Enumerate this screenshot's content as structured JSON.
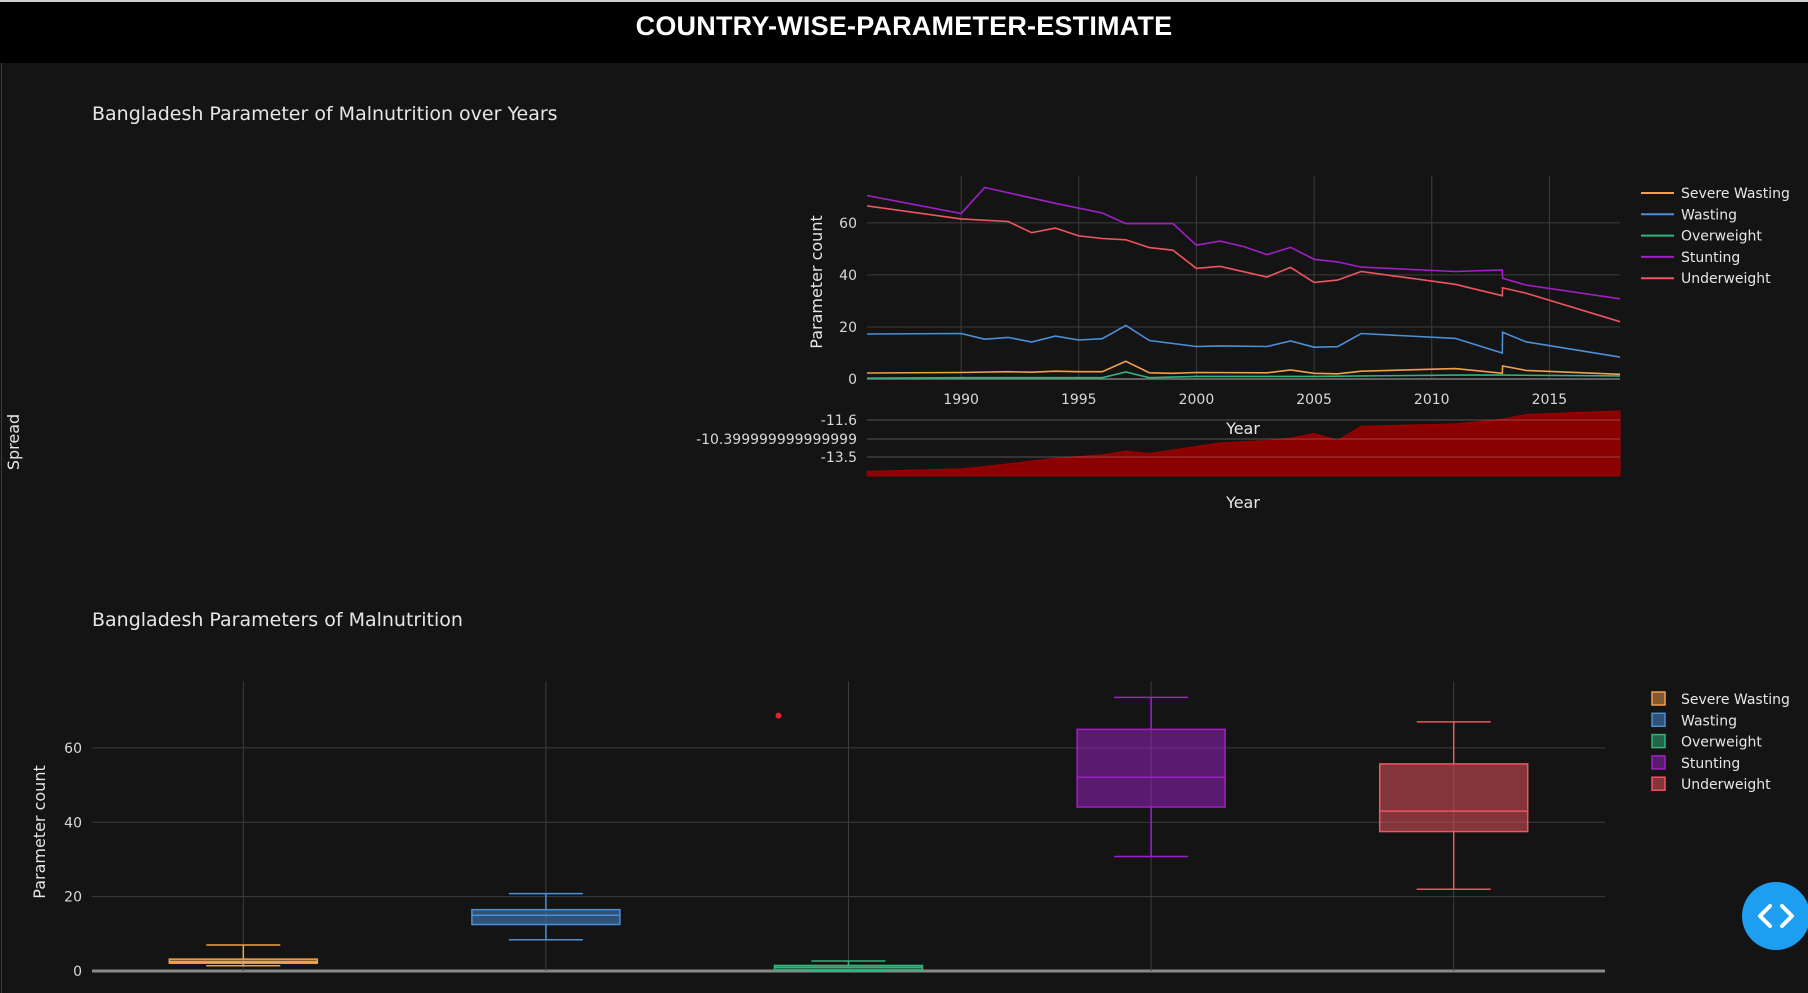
{
  "header": {
    "title": "COUNTRY-WISE-PARAMETER-ESTIMATE"
  },
  "left_axis_label": "Spread",
  "chart_data": [
    {
      "type": "line",
      "title": "Bangladesh Parameter of Malnutrition over Years",
      "xlabel": "Year",
      "ylabel": "Parameter count",
      "xlim": [
        1986,
        2018
      ],
      "ylim": [
        0,
        78
      ],
      "xticks": [
        "1990",
        "1995",
        "2000",
        "2005",
        "2010",
        "2015"
      ],
      "yticks": [
        "0",
        "20",
        "40",
        "60"
      ],
      "legend_position": "top-right",
      "series": [
        {
          "name": "Severe Wasting",
          "color": "#f2a04a",
          "x": [
            1986,
            1990,
            1992,
            1993,
            1994,
            1995,
            1996,
            1997,
            1998,
            1999,
            2000,
            2003,
            2004,
            2005,
            2006,
            2007,
            2011,
            2013,
            2013.01,
            2014,
            2018
          ],
          "y": [
            2.3,
            2.5,
            2.8,
            2.6,
            3.0,
            2.8,
            2.8,
            6.8,
            2.4,
            2.2,
            2.5,
            2.4,
            3.5,
            2.2,
            2.0,
            3.0,
            4.0,
            2.2,
            5.0,
            3.3,
            1.8
          ]
        },
        {
          "name": "Wasting",
          "color": "#4a90d9",
          "x": [
            1986,
            1990,
            1991,
            1992,
            1993,
            1994,
            1995,
            1996,
            1997,
            1998,
            2000,
            2001,
            2003,
            2004,
            2005,
            2006,
            2007,
            2011,
            2013,
            2013.01,
            2014,
            2018
          ],
          "y": [
            17.3,
            17.5,
            15.3,
            16.0,
            14.2,
            16.5,
            15.0,
            15.5,
            20.6,
            14.8,
            12.5,
            12.7,
            12.5,
            14.6,
            12.2,
            12.4,
            17.5,
            15.6,
            10.0,
            18.0,
            14.3,
            8.4
          ]
        },
        {
          "name": "Overweight",
          "color": "#2fb47c",
          "x": [
            1986,
            1990,
            1996,
            1997,
            1998,
            2000,
            2005,
            2011,
            2013,
            2018
          ],
          "y": [
            0.3,
            0.5,
            0.5,
            2.7,
            0.5,
            1.0,
            1.0,
            1.5,
            1.5,
            1.2
          ]
        },
        {
          "name": "Stunting",
          "color": "#a020c8",
          "x": [
            1986,
            1990,
            1991,
            1994,
            1996,
            1997,
            1999,
            2000,
            2001,
            2002,
            2003,
            2004,
            2005,
            2006,
            2007,
            2011,
            2013,
            2013.01,
            2014,
            2018
          ],
          "y": [
            70.5,
            63.6,
            73.6,
            67.5,
            63.8,
            59.7,
            59.7,
            51.4,
            53.0,
            50.9,
            47.8,
            50.6,
            46.0,
            45.0,
            43.0,
            41.3,
            41.9,
            38.7,
            36.1,
            30.8
          ]
        },
        {
          "name": "Underweight",
          "color": "#ef5560",
          "x": [
            1986,
            1990,
            1992,
            1993,
            1994,
            1995,
            1996,
            1997,
            1998,
            1999,
            2000,
            2001,
            2003,
            2004,
            2005,
            2006,
            2007,
            2011,
            2013,
            2013.01,
            2014,
            2018
          ],
          "y": [
            66.5,
            61.5,
            60.5,
            56.2,
            58.0,
            55.0,
            54.0,
            53.5,
            50.5,
            49.5,
            42.5,
            43.3,
            39.2,
            42.9,
            37.1,
            38.0,
            41.3,
            36.4,
            32.0,
            35.0,
            33.0,
            22.0
          ]
        }
      ]
    },
    {
      "type": "area",
      "xlabel": "Year",
      "ylabel": "",
      "yticks": [
        "-11.6",
        "-10.399999999999999",
        "-13.5"
      ],
      "color": "#8b0000",
      "x": [
        1986,
        1990,
        1991,
        1994,
        1996,
        1997,
        1998,
        1999,
        2001,
        2003,
        2004,
        2005,
        2006,
        2007,
        2011,
        2013,
        2014,
        2018
      ],
      "y": [
        -14.6,
        -14.4,
        -14.2,
        -13.5,
        -13.2,
        -12.9,
        -13.1,
        -12.8,
        -12.2,
        -12.0,
        -11.8,
        -11.4,
        -12.0,
        -10.8,
        -10.6,
        -10.2,
        -9.8,
        -9.5
      ]
    },
    {
      "type": "box",
      "title": "Bangladesh Parameters of Malnutrition",
      "ylabel": "Parameter count",
      "ylim": [
        0,
        78
      ],
      "yticks": [
        "0",
        "20",
        "40",
        "60"
      ],
      "legend_position": "right",
      "series": [
        {
          "name": "Severe Wasting",
          "color": "#f2a04a",
          "min": 1.4,
          "q1": 2.1,
          "median": 2.5,
          "q3": 3.2,
          "max": 7.0
        },
        {
          "name": "Wasting",
          "color": "#4a90d9",
          "min": 8.4,
          "q1": 12.5,
          "median": 15.0,
          "q3": 16.5,
          "max": 20.8
        },
        {
          "name": "Overweight",
          "color": "#2fb47c",
          "min": 0.0,
          "q1": 0.3,
          "median": 1.0,
          "q3": 1.5,
          "max": 2.7,
          "outlier": 68.7,
          "outlier_color": "#e0252f"
        },
        {
          "name": "Stunting",
          "color": "#a020c8",
          "min": 30.8,
          "q1": 44.1,
          "median": 52.1,
          "q3": 65.0,
          "max": 73.6
        },
        {
          "name": "Underweight",
          "color": "#ef5560",
          "min": 22.0,
          "q1": 37.5,
          "median": 43.0,
          "q3": 55.7,
          "max": 67.0
        }
      ]
    }
  ],
  "code_button": {
    "icon": "code-icon"
  }
}
